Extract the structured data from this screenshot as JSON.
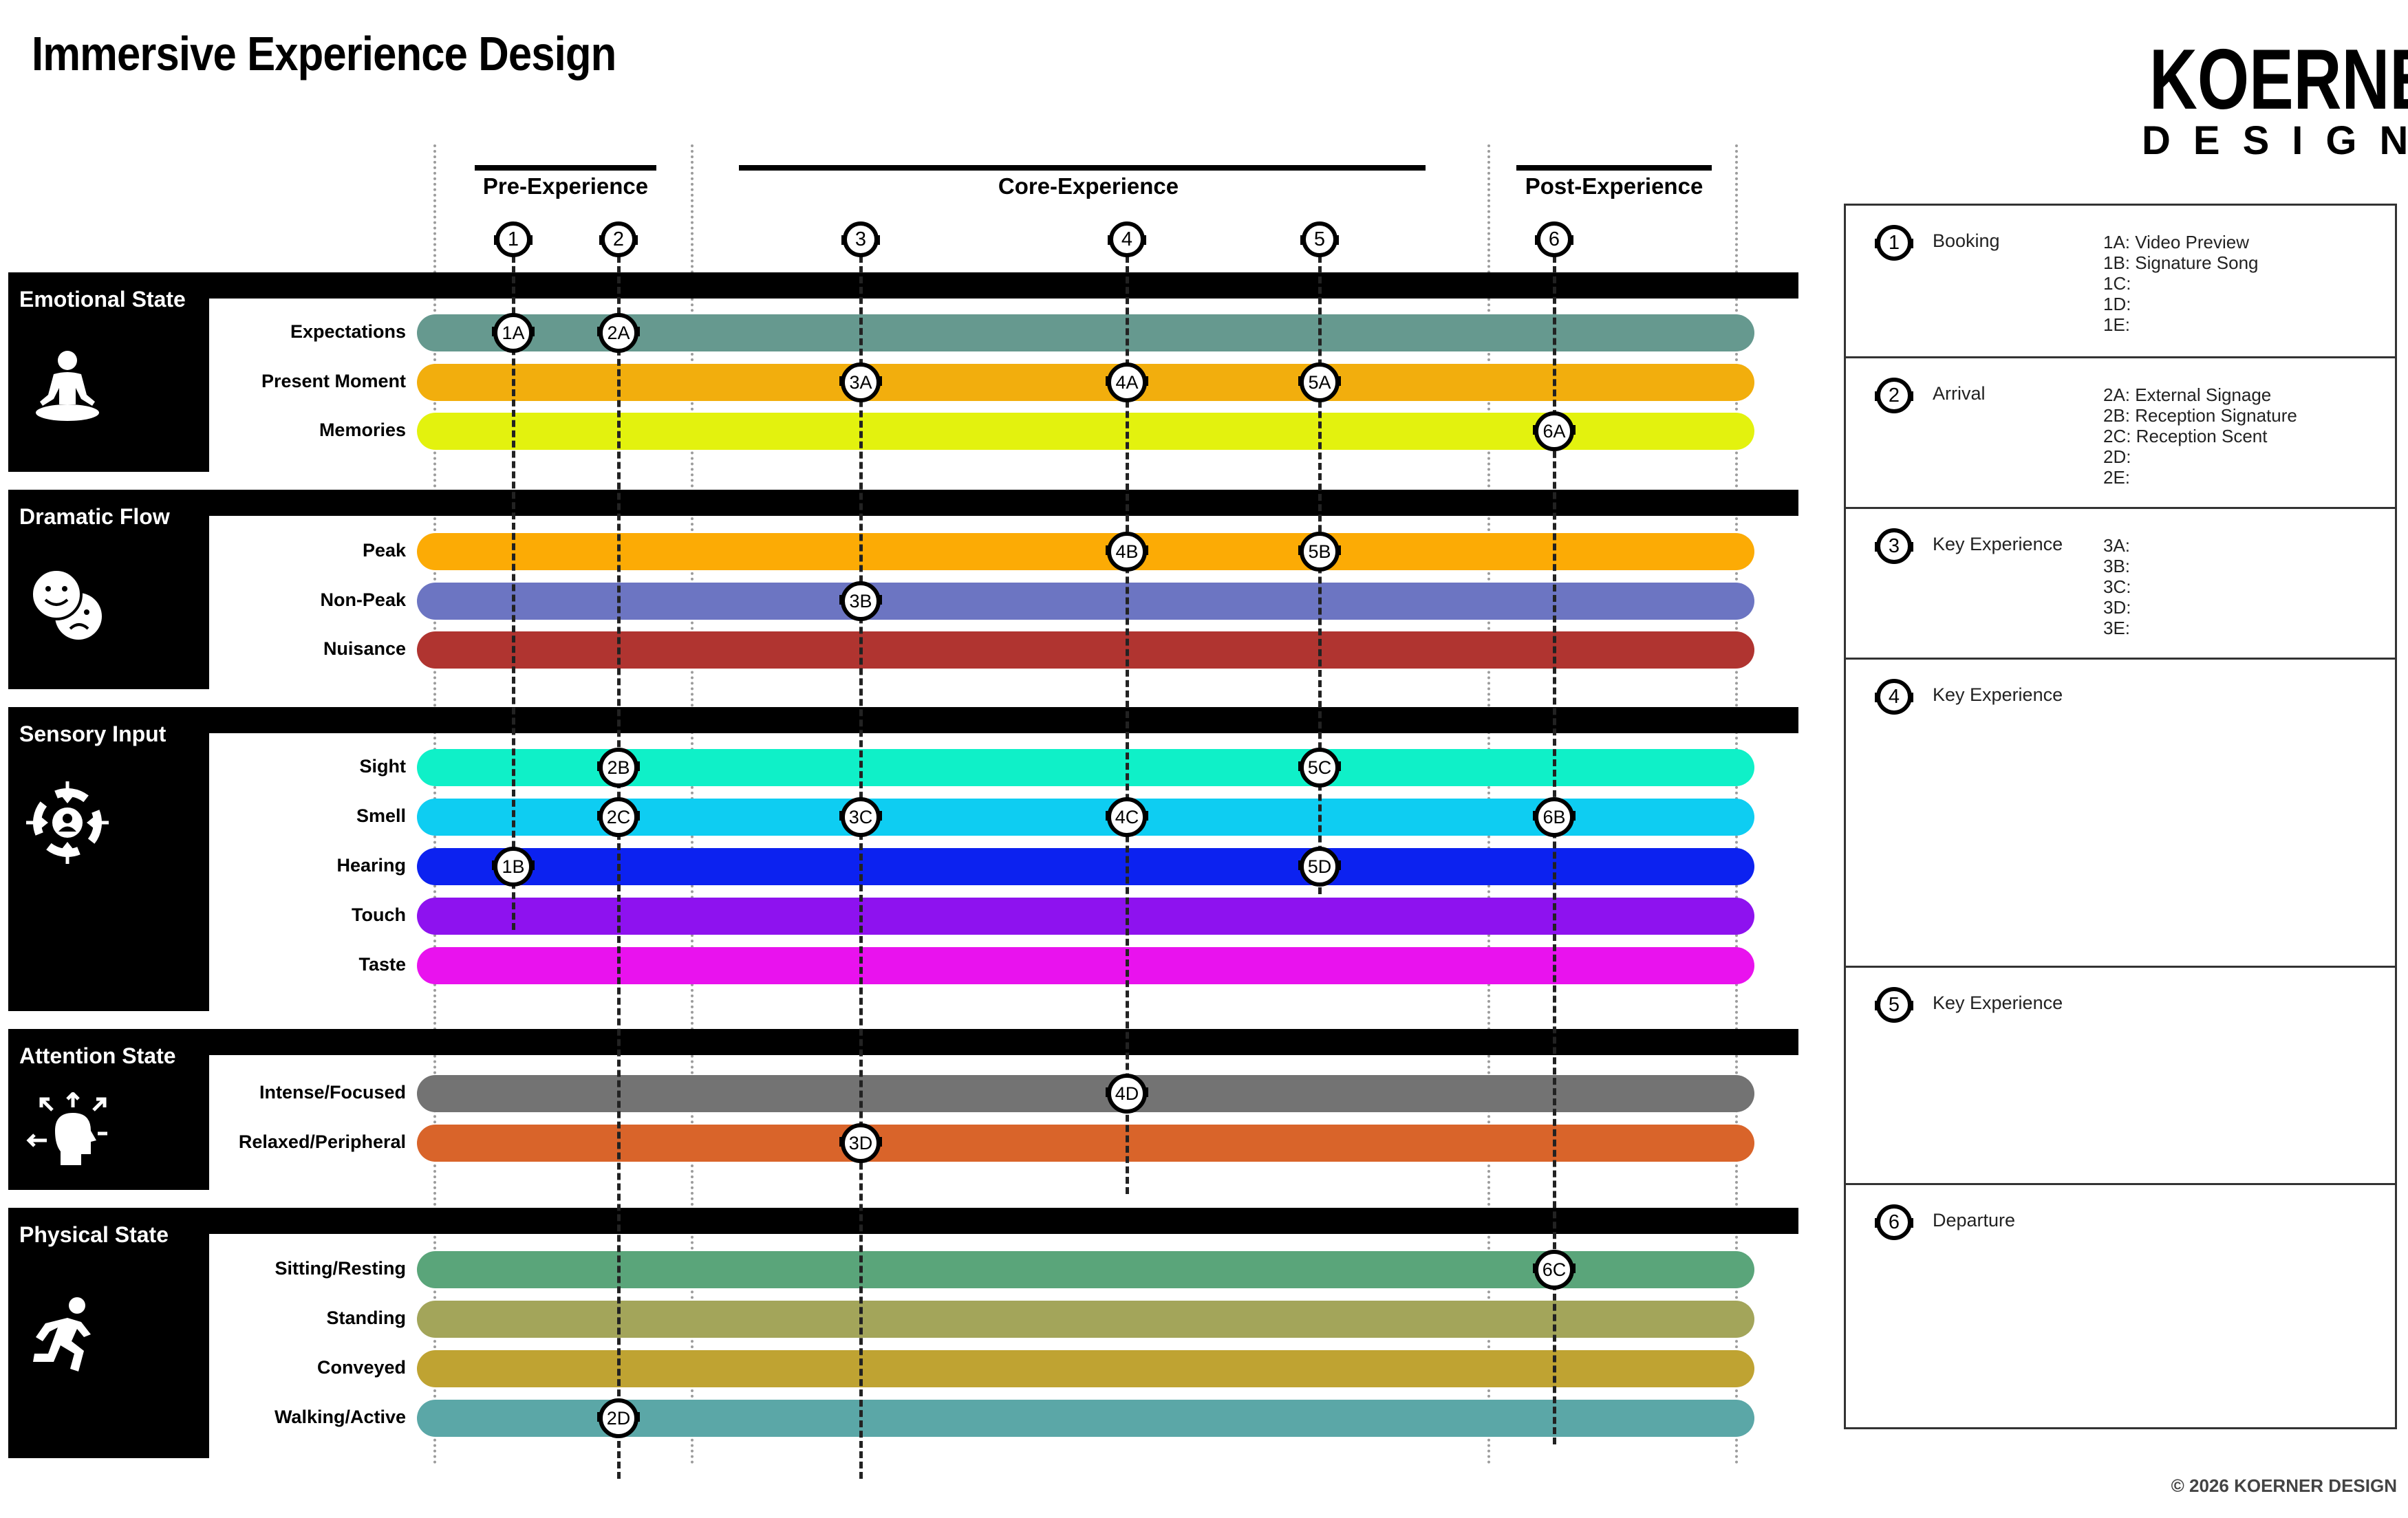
{
  "title": "Immersive Experience Design",
  "logo": {
    "line1": "KOERNER",
    "line2": "DESIGN"
  },
  "copyright": "© 2026 KOERNER DESIGN",
  "phases": [
    {
      "label": "Pre-Experience"
    },
    {
      "label": "Core-Experience"
    },
    {
      "label": "Post-Experience"
    }
  ],
  "step_numbers": [
    "1",
    "2",
    "3",
    "4",
    "5",
    "6"
  ],
  "categories": [
    {
      "title": "Emotional State",
      "icon": "meditation-icon",
      "rows": [
        {
          "label": "Expectations",
          "color": "#66998f"
        },
        {
          "label": "Present Moment",
          "color": "#f2ae0d"
        },
        {
          "label": "Memories",
          "color": "#e3f20e"
        }
      ]
    },
    {
      "title": "Dramatic Flow",
      "icon": "happy-sad-faces-icon",
      "rows": [
        {
          "label": "Peak",
          "color": "#fcab05"
        },
        {
          "label": "Non-Peak",
          "color": "#6c75c2"
        },
        {
          "label": "Nuisance",
          "color": "#b03430"
        }
      ]
    },
    {
      "title": "Sensory Input",
      "icon": "sensory-target-icon",
      "rows": [
        {
          "label": "Sight",
          "color": "#0ff0c8"
        },
        {
          "label": "Smell",
          "color": "#0ecdf2"
        },
        {
          "label": "Hearing",
          "color": "#0c22f0"
        },
        {
          "label": "Touch",
          "color": "#8e12ef"
        },
        {
          "label": "Taste",
          "color": "#e912ee"
        }
      ]
    },
    {
      "title": "Attention State",
      "icon": "attention-head-icon",
      "rows": [
        {
          "label": "Intense/Focused",
          "color": "#737373"
        },
        {
          "label": "Relaxed/Peripheral",
          "color": "#d9642a"
        }
      ]
    },
    {
      "title": "Physical State",
      "icon": "running-person-icon",
      "rows": [
        {
          "label": "Sitting/Resting",
          "color": "#5aa57a"
        },
        {
          "label": "Standing",
          "color": "#a3a55a"
        },
        {
          "label": "Conveyed",
          "color": "#bfa332"
        },
        {
          "label": "Walking/Active",
          "color": "#5ba7a7"
        }
      ]
    }
  ],
  "touchpoints": [
    {
      "label": "1A",
      "step": "1",
      "row": "Expectations"
    },
    {
      "label": "2A",
      "step": "2",
      "row": "Expectations"
    },
    {
      "label": "3A",
      "step": "3",
      "row": "Present Moment"
    },
    {
      "label": "4A",
      "step": "4",
      "row": "Present Moment"
    },
    {
      "label": "5A",
      "step": "5",
      "row": "Present Moment"
    },
    {
      "label": "6A",
      "step": "6",
      "row": "Memories"
    },
    {
      "label": "4B",
      "step": "4",
      "row": "Peak"
    },
    {
      "label": "5B",
      "step": "5",
      "row": "Peak"
    },
    {
      "label": "3B",
      "step": "3",
      "row": "Non-Peak"
    },
    {
      "label": "2B",
      "step": "2",
      "row": "Sight"
    },
    {
      "label": "5C",
      "step": "5",
      "row": "Sight"
    },
    {
      "label": "2C",
      "step": "2",
      "row": "Smell"
    },
    {
      "label": "3C",
      "step": "3",
      "row": "Smell"
    },
    {
      "label": "4C",
      "step": "4",
      "row": "Smell"
    },
    {
      "label": "6B",
      "step": "6",
      "row": "Smell"
    },
    {
      "label": "1B",
      "step": "1",
      "row": "Hearing"
    },
    {
      "label": "5D",
      "step": "5",
      "row": "Hearing"
    },
    {
      "label": "4D",
      "step": "4",
      "row": "Intense/Focused"
    },
    {
      "label": "3D",
      "step": "3",
      "row": "Relaxed/Peripheral"
    },
    {
      "label": "6C",
      "step": "6",
      "row": "Sitting/Resting"
    },
    {
      "label": "2D",
      "step": "2",
      "row": "Walking/Active"
    }
  ],
  "steps": [
    {
      "number": "1",
      "title": "Booking",
      "details": [
        "1A: Video Preview",
        "1B: Signature Song",
        "1C:",
        "1D:",
        "1E:"
      ]
    },
    {
      "number": "2",
      "title": "Arrival",
      "details": [
        "2A: External Signage",
        "2B: Reception Signature",
        "2C: Reception Scent",
        "2D:",
        "2E:"
      ]
    },
    {
      "number": "3",
      "title": "Key Experience",
      "details": [
        "3A:",
        "3B:",
        "3C:",
        "3D:",
        "3E:"
      ]
    },
    {
      "number": "4",
      "title": "Key Experience",
      "details": []
    },
    {
      "number": "5",
      "title": "Key Experience",
      "details": []
    },
    {
      "number": "6",
      "title": "Departure",
      "details": []
    }
  ],
  "colors": {
    "ink": "#000000",
    "guide": "#9c9c9c",
    "card_border": "#333333"
  }
}
